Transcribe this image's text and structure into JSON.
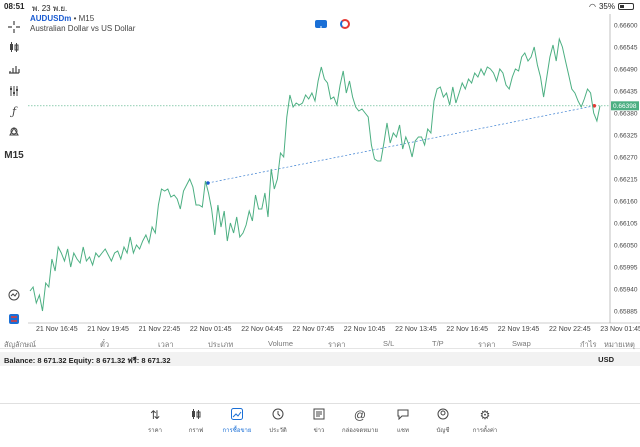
{
  "status_bar": {
    "time": "08:51",
    "date": "พ. 23 พ.ย.",
    "battery": "35%",
    "battery_level": 0.35
  },
  "chart": {
    "symbol": "AUDUSDm",
    "separator": "•",
    "timeframe": "M15",
    "description": "Australian Dollar vs US Dollar",
    "current_price": "0.66398",
    "toolbar_timeframe": "M15",
    "colors": {
      "line": "#4caf82",
      "price_line": "#4caf82",
      "trend_line": "#3b7fd1",
      "current_price_bg": "#4caf82"
    }
  },
  "chart_data": {
    "type": "line",
    "price_ticks": [
      "0.66600",
      "0.66545",
      "0.66490",
      "0.66435",
      "0.66380",
      "0.66325",
      "0.66270",
      "0.66215",
      "0.66160",
      "0.66105",
      "0.66050",
      "0.65995",
      "0.65940",
      "0.65885"
    ],
    "ylim": [
      0.65855,
      0.66615
    ],
    "time_ticks": [
      "21 Nov 16:45",
      "21 Nov 19:45",
      "21 Nov 22:45",
      "22 Nov 01:45",
      "22 Nov 04:45",
      "22 Nov 07:45",
      "22 Nov 10:45",
      "22 Nov 13:45",
      "22 Nov 16:45",
      "22 Nov 19:45",
      "22 Nov 22:45",
      "23 Nov 01:45"
    ],
    "series": [
      {
        "values": [
          0.65935,
          0.65945,
          0.65905,
          0.65925,
          0.65885,
          0.65955,
          0.65945,
          0.66015,
          0.65985,
          0.66045,
          0.6603,
          0.6601,
          0.6604,
          0.65995,
          0.6603,
          0.66015,
          0.66005,
          0.66045,
          0.6601,
          0.6602,
          0.66,
          0.6603,
          0.6602,
          0.6603,
          0.6604,
          0.66025,
          0.6601,
          0.6603,
          0.66035,
          0.66015,
          0.66045,
          0.6603,
          0.6607,
          0.6603,
          0.6605,
          0.6604,
          0.6606,
          0.66075,
          0.66055,
          0.66095,
          0.6608,
          0.6615,
          0.6619,
          0.66185,
          0.6619,
          0.6617,
          0.66175,
          0.66165,
          0.6614,
          0.66185,
          0.662,
          0.66215,
          0.66195,
          0.6615,
          0.6615,
          0.66145,
          0.6621,
          0.6618,
          0.6614,
          0.66075,
          0.6615,
          0.66095,
          0.66135,
          0.6606,
          0.66105,
          0.6608,
          0.6612,
          0.6607,
          0.6608,
          0.661,
          0.66135,
          0.6611,
          0.66175,
          0.6614,
          0.6614,
          0.6618,
          0.6612,
          0.6624,
          0.6619,
          0.66215,
          0.6628,
          0.6627,
          0.6637,
          0.66425,
          0.66395,
          0.66405,
          0.664,
          0.66405,
          0.66425,
          0.66415,
          0.6643,
          0.6641,
          0.6646,
          0.66495,
          0.66465,
          0.66455,
          0.66415,
          0.6642,
          0.664,
          0.6645,
          0.66485,
          0.6643,
          0.6646,
          0.6642,
          0.66395,
          0.66385,
          0.6639,
          0.6638,
          0.6637,
          0.663,
          0.66265,
          0.6626,
          0.6626,
          0.66305,
          0.66355,
          0.66305,
          0.6633,
          0.6632,
          0.6635,
          0.6629,
          0.6632,
          0.663,
          0.6627,
          0.6631,
          0.6632,
          0.6632,
          0.663,
          0.6634,
          0.6633,
          0.6641,
          0.6644,
          0.66445,
          0.6642,
          0.6643,
          0.664,
          0.66445,
          0.66405,
          0.6643,
          0.66455,
          0.6644,
          0.66465,
          0.66455,
          0.6648,
          0.6647,
          0.6649,
          0.66475,
          0.66495,
          0.6649,
          0.6648,
          0.6646,
          0.6649,
          0.6648,
          0.6645,
          0.6644,
          0.6647,
          0.6649,
          0.66485,
          0.6652,
          0.6653,
          0.6651,
          0.6652,
          0.66545,
          0.665,
          0.6647,
          0.6642,
          0.6647,
          0.6652,
          0.6655,
          0.6651,
          0.66565,
          0.66545,
          0.6651,
          0.66475,
          0.6644,
          0.6643,
          0.6641,
          0.66395,
          0.66415,
          0.6644,
          0.6643,
          0.6638,
          0.6636,
          0.66398
        ]
      }
    ],
    "current_price": 0.66398,
    "trendline": {
      "from": [
        "22 Nov 01:45",
        0.66205
      ],
      "to": [
        "23 Nov 01:45",
        0.66398
      ]
    },
    "grid": false
  },
  "table_header": {
    "columns": [
      "สัญลักษณ์",
      "ตั๋ว",
      "เวลา",
      "ประเภท",
      "Volume",
      "ราคา",
      "S/L",
      "T/P",
      "ราคา",
      "Swap",
      "กำไร",
      "หมายเหตุ"
    ]
  },
  "balance": {
    "text": "Balance: 8 671.32 Equity: 8 671.32 ฟรี: 8 671.32",
    "currency": "USD"
  },
  "tabbar": {
    "tabs": [
      {
        "label": "ราคา",
        "icon": "arrows-updown-icon"
      },
      {
        "label": "กราฟ",
        "icon": "candles-icon"
      },
      {
        "label": "การซื้อขาย",
        "icon": "trade-chart-icon",
        "active": true
      },
      {
        "label": "ประวัติ",
        "icon": "history-icon"
      },
      {
        "label": "ข่าว",
        "icon": "news-icon"
      },
      {
        "label": "กล่องจดหมาย",
        "icon": "mailbox-icon"
      },
      {
        "label": "แชท",
        "icon": "chat-icon"
      },
      {
        "label": "บัญชี",
        "icon": "account-icon"
      },
      {
        "label": "การตั้งค่า",
        "icon": "settings-icon"
      }
    ]
  }
}
